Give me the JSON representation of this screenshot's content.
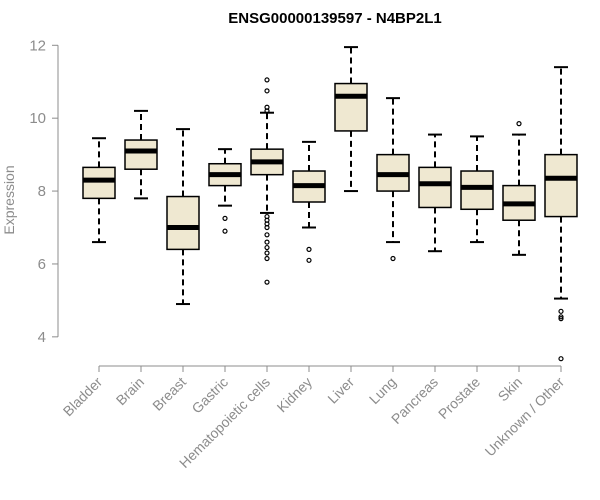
{
  "chart_data": {
    "type": "box",
    "title": "ENSG00000139597 - N4BP2L1",
    "ylabel": "Expression",
    "xlabel": "",
    "ylim": [
      3.2,
      12.2
    ],
    "yticks": [
      4,
      6,
      8,
      10,
      12
    ],
    "box_fill": "#efe8d1",
    "box_stroke": "#000000",
    "axis_color": "#8c8c8c",
    "categories": [
      "Bladder",
      "Brain",
      "Breast",
      "Gastric",
      "Hematopoietic cells",
      "Kidney",
      "Liver",
      "Lung",
      "Pancreas",
      "Prostate",
      "Skin",
      "Unknown / Other"
    ],
    "boxes": [
      {
        "category": "Bladder",
        "whisker_low": 6.6,
        "q1": 7.8,
        "median": 8.3,
        "q3": 8.65,
        "whisker_high": 9.45,
        "outliers": []
      },
      {
        "category": "Brain",
        "whisker_low": 7.8,
        "q1": 8.6,
        "median": 9.1,
        "q3": 9.4,
        "whisker_high": 10.2,
        "outliers": []
      },
      {
        "category": "Breast",
        "whisker_low": 4.9,
        "q1": 6.4,
        "median": 7.0,
        "q3": 7.85,
        "whisker_high": 9.7,
        "outliers": []
      },
      {
        "category": "Gastric",
        "whisker_low": 7.6,
        "q1": 8.15,
        "median": 8.45,
        "q3": 8.75,
        "whisker_high": 9.15,
        "outliers": [
          7.25,
          6.9
        ]
      },
      {
        "category": "Hematopoietic cells",
        "whisker_low": 7.4,
        "q1": 8.45,
        "median": 8.8,
        "q3": 9.15,
        "whisker_high": 10.15,
        "outliers": [
          11.05,
          10.75,
          10.3,
          10.2,
          7.3,
          7.2,
          7.1,
          7.0,
          6.8,
          6.6,
          6.45,
          6.3,
          6.15,
          5.5
        ]
      },
      {
        "category": "Kidney",
        "whisker_low": 7.0,
        "q1": 7.7,
        "median": 8.15,
        "q3": 8.55,
        "whisker_high": 9.35,
        "outliers": [
          6.4,
          6.1
        ]
      },
      {
        "category": "Liver",
        "whisker_low": 8.0,
        "q1": 9.65,
        "median": 10.6,
        "q3": 10.95,
        "whisker_high": 11.95,
        "outliers": []
      },
      {
        "category": "Lung",
        "whisker_low": 6.6,
        "q1": 8.0,
        "median": 8.45,
        "q3": 9.0,
        "whisker_high": 10.55,
        "outliers": [
          6.15
        ]
      },
      {
        "category": "Pancreas",
        "whisker_low": 6.35,
        "q1": 7.55,
        "median": 8.2,
        "q3": 8.65,
        "whisker_high": 9.55,
        "outliers": []
      },
      {
        "category": "Prostate",
        "whisker_low": 6.6,
        "q1": 7.5,
        "median": 8.1,
        "q3": 8.55,
        "whisker_high": 9.5,
        "outliers": []
      },
      {
        "category": "Skin",
        "whisker_low": 6.25,
        "q1": 7.2,
        "median": 7.65,
        "q3": 8.15,
        "whisker_high": 9.55,
        "outliers": [
          9.85
        ]
      },
      {
        "category": "Unknown / Other",
        "whisker_low": 5.05,
        "q1": 7.3,
        "median": 8.35,
        "q3": 9.0,
        "whisker_high": 11.4,
        "outliers": [
          4.7,
          4.55,
          4.5,
          3.4
        ]
      }
    ]
  }
}
